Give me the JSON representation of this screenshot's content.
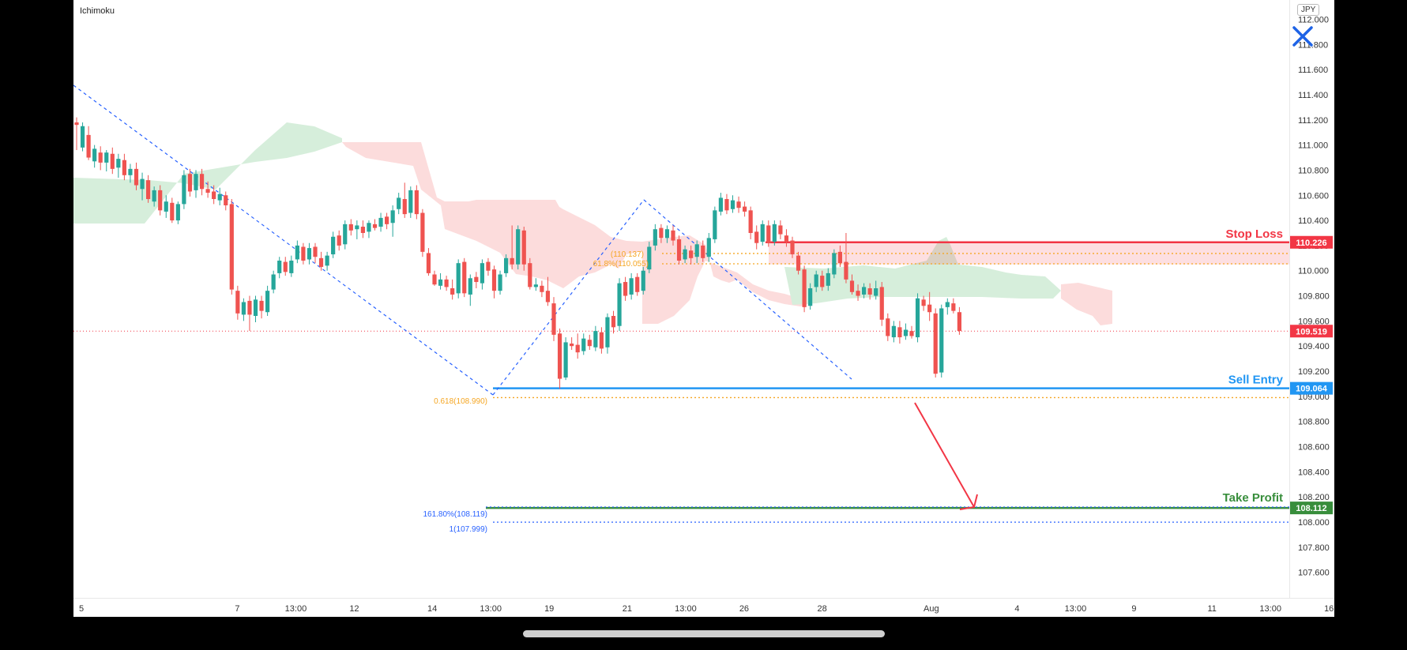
{
  "chart_data": {
    "type": "candlestick",
    "indicator": "Ichimoku",
    "currency": "JPY",
    "y_range": [
      107.5,
      112.0
    ],
    "y_ticks": [
      "112.000",
      "111.800",
      "111.600",
      "111.400",
      "111.200",
      "111.000",
      "110.800",
      "110.600",
      "110.400",
      "110.200",
      "110.000",
      "109.800",
      "109.600",
      "109.400",
      "109.200",
      "109.000",
      "108.800",
      "108.600",
      "108.400",
      "108.200",
      "108.000",
      "107.800",
      "107.600"
    ],
    "x_ticks": [
      {
        "label": "5",
        "pos": 0.0
      },
      {
        "label": "7",
        "pos": 2.0
      },
      {
        "label": "13:00",
        "pos": 2.75
      },
      {
        "label": "12",
        "pos": 3.5
      },
      {
        "label": "14",
        "pos": 4.5
      },
      {
        "label": "13:00",
        "pos": 5.25
      },
      {
        "label": "19",
        "pos": 6.0
      },
      {
        "label": "21",
        "pos": 7.0
      },
      {
        "label": "13:00",
        "pos": 7.75
      },
      {
        "label": "26",
        "pos": 8.5
      },
      {
        "label": "28",
        "pos": 9.5
      },
      {
        "label": "Aug",
        "pos": 10.9
      },
      {
        "label": "4",
        "pos": 12.0
      },
      {
        "label": "13:00",
        "pos": 12.75
      },
      {
        "label": "9",
        "pos": 13.5
      },
      {
        "label": "11",
        "pos": 14.5
      },
      {
        "label": "13:00",
        "pos": 15.25
      },
      {
        "label": "16",
        "pos": 16.0
      }
    ],
    "candles": [
      [
        111.18,
        111.16,
        111.22,
        110.96
      ],
      [
        110.98,
        111.15,
        111.18,
        110.95
      ],
      [
        111.08,
        110.9,
        111.15,
        110.88
      ],
      [
        110.87,
        110.97,
        111.0,
        110.82
      ],
      [
        110.94,
        110.86,
        110.99,
        110.8
      ],
      [
        110.86,
        110.94,
        110.96,
        110.79
      ],
      [
        110.93,
        110.81,
        110.98,
        110.77
      ],
      [
        110.82,
        110.89,
        110.93,
        110.74
      ],
      [
        110.88,
        110.76,
        110.93,
        110.72
      ],
      [
        110.76,
        110.81,
        110.85,
        110.7
      ],
      [
        110.81,
        110.68,
        110.86,
        110.64
      ],
      [
        110.65,
        110.73,
        110.78,
        110.56
      ],
      [
        110.72,
        110.57,
        110.76,
        110.54
      ],
      [
        110.55,
        110.64,
        110.67,
        110.51
      ],
      [
        110.64,
        110.48,
        110.68,
        110.44
      ],
      [
        110.47,
        110.55,
        110.6,
        110.42
      ],
      [
        110.54,
        110.4,
        110.58,
        110.38
      ],
      [
        110.4,
        110.53,
        110.55,
        110.37
      ],
      [
        110.53,
        110.76,
        110.8,
        110.49
      ],
      [
        110.77,
        110.63,
        110.81,
        110.59
      ],
      [
        110.64,
        110.77,
        110.8,
        110.58
      ],
      [
        110.77,
        110.65,
        110.81,
        110.6
      ],
      [
        110.65,
        110.62,
        110.71,
        110.58
      ],
      [
        110.63,
        110.57,
        110.68,
        110.53
      ],
      [
        110.56,
        110.61,
        110.66,
        110.52
      ],
      [
        110.6,
        110.52,
        110.63,
        110.48
      ],
      [
        110.53,
        109.85,
        110.57,
        109.81
      ],
      [
        109.84,
        109.66,
        109.88,
        109.61
      ],
      [
        109.65,
        109.75,
        109.78,
        109.6
      ],
      [
        109.76,
        109.65,
        109.8,
        109.52
      ],
      [
        109.64,
        109.77,
        109.8,
        109.59
      ],
      [
        109.76,
        109.68,
        109.8,
        109.62
      ],
      [
        109.67,
        109.84,
        109.88,
        109.64
      ],
      [
        109.85,
        109.97,
        110.0,
        109.82
      ],
      [
        109.98,
        110.08,
        110.11,
        109.94
      ],
      [
        110.07,
        109.99,
        110.11,
        109.96
      ],
      [
        109.98,
        110.08,
        110.12,
        109.95
      ],
      [
        110.09,
        110.2,
        110.24,
        110.06
      ],
      [
        110.19,
        110.08,
        110.22,
        110.05
      ],
      [
        110.09,
        110.18,
        110.22,
        110.05
      ],
      [
        110.19,
        110.11,
        110.22,
        110.06
      ],
      [
        110.1,
        110.03,
        110.15,
        110.0
      ],
      [
        110.04,
        110.12,
        110.15,
        110.0
      ],
      [
        110.13,
        110.27,
        110.31,
        110.1
      ],
      [
        110.28,
        110.2,
        110.32,
        110.16
      ],
      [
        110.21,
        110.37,
        110.4,
        110.17
      ],
      [
        110.37,
        110.32,
        110.41,
        110.28
      ],
      [
        110.33,
        110.36,
        110.4,
        110.25
      ],
      [
        110.35,
        110.3,
        110.4,
        110.26
      ],
      [
        110.31,
        110.38,
        110.4,
        110.26
      ],
      [
        110.37,
        110.34,
        110.41,
        110.32
      ],
      [
        110.35,
        110.42,
        110.46,
        110.31
      ],
      [
        110.43,
        110.37,
        110.46,
        110.33
      ],
      [
        110.38,
        110.48,
        110.52,
        110.27
      ],
      [
        110.49,
        110.58,
        110.62,
        110.45
      ],
      [
        110.57,
        110.45,
        110.7,
        110.42
      ],
      [
        110.46,
        110.64,
        110.67,
        110.42
      ],
      [
        110.64,
        110.45,
        110.68,
        110.41
      ],
      [
        110.46,
        110.15,
        110.49,
        110.11
      ],
      [
        110.14,
        109.98,
        110.18,
        109.96
      ],
      [
        109.97,
        109.89,
        110.0,
        109.88
      ],
      [
        109.88,
        109.93,
        109.98,
        109.85
      ],
      [
        109.93,
        109.87,
        109.96,
        109.84
      ],
      [
        109.86,
        109.81,
        109.93,
        109.77
      ],
      [
        109.82,
        110.06,
        110.09,
        109.78
      ],
      [
        110.07,
        109.82,
        110.1,
        109.79
      ],
      [
        109.81,
        109.94,
        109.97,
        109.72
      ],
      [
        109.95,
        109.91,
        109.99,
        109.86
      ],
      [
        109.9,
        110.06,
        110.09,
        109.85
      ],
      [
        110.07,
        110.0,
        110.1,
        109.96
      ],
      [
        110.01,
        109.84,
        110.04,
        109.78
      ],
      [
        109.84,
        109.97,
        110.0,
        109.81
      ],
      [
        109.98,
        110.1,
        110.13,
        109.95
      ],
      [
        110.1,
        110.05,
        110.36,
        110.01
      ],
      [
        110.05,
        110.33,
        110.36,
        110.01
      ],
      [
        110.32,
        110.05,
        110.35,
        110.0
      ],
      [
        110.06,
        109.87,
        110.1,
        109.85
      ],
      [
        109.87,
        109.89,
        109.94,
        109.84
      ],
      [
        109.88,
        109.83,
        109.92,
        109.79
      ],
      [
        109.84,
        109.75,
        109.95,
        109.72
      ],
      [
        109.74,
        109.49,
        109.79,
        109.44
      ],
      [
        109.5,
        109.14,
        109.54,
        109.06
      ],
      [
        109.15,
        109.43,
        109.47,
        109.13
      ],
      [
        109.42,
        109.4,
        109.47,
        109.37
      ],
      [
        109.41,
        109.35,
        109.5,
        109.3
      ],
      [
        109.36,
        109.46,
        109.5,
        109.33
      ],
      [
        109.45,
        109.4,
        109.49,
        109.37
      ],
      [
        109.39,
        109.52,
        109.56,
        109.36
      ],
      [
        109.51,
        109.38,
        109.55,
        109.34
      ],
      [
        109.39,
        109.63,
        109.66,
        109.34
      ],
      [
        109.64,
        109.55,
        109.68,
        109.5
      ],
      [
        109.56,
        109.9,
        109.94,
        109.52
      ],
      [
        109.91,
        109.8,
        109.95,
        109.76
      ],
      [
        109.81,
        109.94,
        109.98,
        109.77
      ],
      [
        109.95,
        109.83,
        109.98,
        109.8
      ],
      [
        109.84,
        110.0,
        110.03,
        109.81
      ],
      [
        110.01,
        110.19,
        110.23,
        109.98
      ],
      [
        110.2,
        110.33,
        110.37,
        110.16
      ],
      [
        110.34,
        110.26,
        110.37,
        110.22
      ],
      [
        110.26,
        110.33,
        110.36,
        110.22
      ],
      [
        110.32,
        110.24,
        110.36,
        110.2
      ],
      [
        110.25,
        110.08,
        110.28,
        110.05
      ],
      [
        110.09,
        110.17,
        110.2,
        110.06
      ],
      [
        110.16,
        110.1,
        110.2,
        110.05
      ],
      [
        110.11,
        110.21,
        110.24,
        110.06
      ],
      [
        110.2,
        110.1,
        110.24,
        110.07
      ],
      [
        110.11,
        110.26,
        110.3,
        110.07
      ],
      [
        110.25,
        110.48,
        110.51,
        110.22
      ],
      [
        110.47,
        110.58,
        110.62,
        110.44
      ],
      [
        110.57,
        110.48,
        110.61,
        110.45
      ],
      [
        110.49,
        110.56,
        110.6,
        110.46
      ],
      [
        110.55,
        110.5,
        110.59,
        110.46
      ],
      [
        110.51,
        110.47,
        110.55,
        110.43
      ],
      [
        110.48,
        110.3,
        110.51,
        110.25
      ],
      [
        110.31,
        110.22,
        110.36,
        110.17
      ],
      [
        110.23,
        110.37,
        110.4,
        110.2
      ],
      [
        110.36,
        110.22,
        110.4,
        110.19
      ],
      [
        110.23,
        110.37,
        110.4,
        110.2
      ],
      [
        110.36,
        110.29,
        110.4,
        110.25
      ],
      [
        110.28,
        110.23,
        110.33,
        110.19
      ],
      [
        110.24,
        110.13,
        110.27,
        110.1
      ],
      [
        110.12,
        110.0,
        110.15,
        109.97
      ],
      [
        110.01,
        109.71,
        110.04,
        109.67
      ],
      [
        109.72,
        109.86,
        109.9,
        109.69
      ],
      [
        109.87,
        109.97,
        110.0,
        109.83
      ],
      [
        109.96,
        109.87,
        110.0,
        109.84
      ],
      [
        109.88,
        109.98,
        110.02,
        109.84
      ],
      [
        109.97,
        110.14,
        110.17,
        109.94
      ],
      [
        110.15,
        110.06,
        110.2,
        110.03
      ],
      [
        110.07,
        109.93,
        110.3,
        109.9
      ],
      [
        109.92,
        109.83,
        109.97,
        109.81
      ],
      [
        109.84,
        109.8,
        109.89,
        109.76
      ],
      [
        109.81,
        109.87,
        109.9,
        109.78
      ],
      [
        109.86,
        109.81,
        109.9,
        109.77
      ],
      [
        109.8,
        109.86,
        109.92,
        109.77
      ],
      [
        109.87,
        109.61,
        109.91,
        109.56
      ],
      [
        109.62,
        109.48,
        109.66,
        109.44
      ],
      [
        109.47,
        109.56,
        109.6,
        109.43
      ],
      [
        109.55,
        109.47,
        109.6,
        109.42
      ],
      [
        109.48,
        109.53,
        109.58,
        109.45
      ],
      [
        109.52,
        109.48,
        109.56,
        109.46
      ],
      [
        109.47,
        109.78,
        109.82,
        109.43
      ],
      [
        109.77,
        109.72,
        109.8,
        109.68
      ],
      [
        109.73,
        109.67,
        109.83,
        109.6
      ],
      [
        109.66,
        109.18,
        109.7,
        109.15
      ],
      [
        109.19,
        109.7,
        109.73,
        109.15
      ],
      [
        109.71,
        109.75,
        109.78,
        109.65
      ],
      [
        109.74,
        109.68,
        109.78,
        109.66
      ],
      [
        109.67,
        109.52,
        109.71,
        109.49
      ]
    ],
    "lines": {
      "stop_loss": {
        "value": 110.226,
        "label": "Stop Loss",
        "price_tag": "110.226",
        "color": "#f23645"
      },
      "sell_entry": {
        "value": 109.064,
        "label": "Sell Entry",
        "price_tag": "109.064",
        "color": "#2196f3"
      },
      "take_profit": {
        "value": 108.112,
        "label": "Take Profit",
        "price_tag": "108.112",
        "color": "#388e3c"
      },
      "last_price": {
        "value": 109.519,
        "price_tag": "109.519",
        "color": "#f23645"
      }
    },
    "fib_levels": [
      {
        "label": "0.618(108.990)",
        "value": 108.99,
        "color": "#f5a623"
      },
      {
        "label": "161.80%(108.119)",
        "value": 108.119,
        "color": "#2962ff"
      },
      {
        "label": "1(107.999)",
        "value": 107.999,
        "color": "#2962ff"
      },
      {
        "label": "61.8%(110.055)",
        "value": 110.055,
        "color": "#f5a623"
      },
      {
        "label": "(110.137)",
        "value": 110.137,
        "color": "#f5a623"
      }
    ],
    "colors": {
      "bull": "#26a69a",
      "bear": "#ef5350",
      "cloud_green": "#d6eedb",
      "cloud_red": "#fcdcdc"
    }
  },
  "ui": {
    "indicator_label": "Ichimoku",
    "currency_badge": "JPY"
  }
}
